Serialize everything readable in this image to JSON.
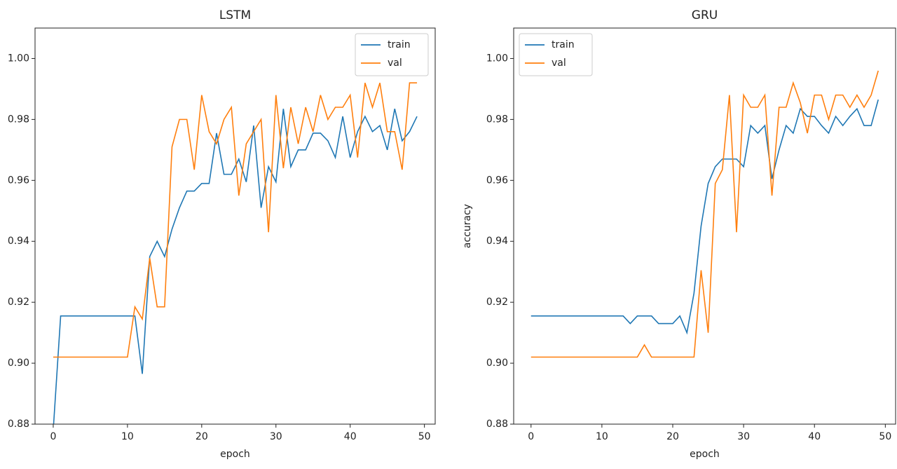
{
  "chart_data": [
    {
      "type": "line",
      "title": "LSTM",
      "xlabel": "epoch",
      "x": [
        0,
        1,
        2,
        3,
        4,
        5,
        6,
        7,
        8,
        9,
        10,
        11,
        12,
        13,
        14,
        15,
        16,
        17,
        18,
        19,
        20,
        21,
        22,
        23,
        24,
        25,
        26,
        27,
        28,
        29,
        30,
        31,
        32,
        33,
        34,
        35,
        36,
        37,
        38,
        39,
        40,
        41,
        42,
        43,
        44,
        45,
        46,
        47,
        48,
        49
      ],
      "series": [
        {
          "name": "train",
          "color": "#1f77b4",
          "values": [
            0.878,
            0.9155,
            0.9155,
            0.9155,
            0.9155,
            0.9155,
            0.9155,
            0.9155,
            0.9155,
            0.9155,
            0.9155,
            0.9155,
            0.8965,
            0.935,
            0.94,
            0.935,
            0.944,
            0.951,
            0.9565,
            0.9565,
            0.959,
            0.959,
            0.9755,
            0.962,
            0.962,
            0.967,
            0.9595,
            0.978,
            0.951,
            0.9645,
            0.9595,
            0.9835,
            0.9645,
            0.97,
            0.97,
            0.9755,
            0.9755,
            0.973,
            0.9675,
            0.981,
            0.9675,
            0.976,
            0.981,
            0.976,
            0.978,
            0.97,
            0.9835,
            0.973,
            0.976,
            0.981
          ]
        },
        {
          "name": "val",
          "color": "#ff7f0e",
          "values": [
            0.902,
            0.902,
            0.902,
            0.902,
            0.902,
            0.902,
            0.902,
            0.902,
            0.902,
            0.902,
            0.902,
            0.9185,
            0.9145,
            0.9345,
            0.9185,
            0.9185,
            0.971,
            0.98,
            0.98,
            0.9635,
            0.988,
            0.976,
            0.972,
            0.98,
            0.984,
            0.955,
            0.972,
            0.976,
            0.98,
            0.943,
            0.988,
            0.964,
            0.984,
            0.972,
            0.984,
            0.976,
            0.988,
            0.98,
            0.984,
            0.984,
            0.988,
            0.9675,
            0.992,
            0.984,
            0.992,
            0.976,
            0.976,
            0.9635,
            0.992,
            0.992
          ]
        }
      ],
      "xlim": [
        -2.45,
        51.45
      ],
      "xticks": [
        0,
        10,
        20,
        30,
        40,
        50
      ],
      "ylim": [
        0.88,
        1.01
      ],
      "yticks": [
        {
          "value": 0.88,
          "label": "0.88"
        },
        {
          "value": 0.9,
          "label": "0.90"
        },
        {
          "value": 0.92,
          "label": "0.92"
        },
        {
          "value": 0.94,
          "label": "0.94"
        },
        {
          "value": 0.96,
          "label": "0.96"
        },
        {
          "value": 0.98,
          "label": "0.98"
        },
        {
          "value": 1.0,
          "label": "1.00"
        }
      ],
      "legend": "upper right"
    },
    {
      "type": "line",
      "title": "GRU",
      "xlabel": "epoch",
      "ylabel": "accuracy",
      "x": [
        0,
        1,
        2,
        3,
        4,
        5,
        6,
        7,
        8,
        9,
        10,
        11,
        12,
        13,
        14,
        15,
        16,
        17,
        18,
        19,
        20,
        21,
        22,
        23,
        24,
        25,
        26,
        27,
        28,
        29,
        30,
        31,
        32,
        33,
        34,
        35,
        36,
        37,
        38,
        39,
        40,
        41,
        42,
        43,
        44,
        45,
        46,
        47,
        48,
        49
      ],
      "series": [
        {
          "name": "train",
          "color": "#1f77b4",
          "values": [
            0.9155,
            0.9155,
            0.9155,
            0.9155,
            0.9155,
            0.9155,
            0.9155,
            0.9155,
            0.9155,
            0.9155,
            0.9155,
            0.9155,
            0.9155,
            0.9155,
            0.913,
            0.9155,
            0.9155,
            0.9155,
            0.913,
            0.913,
            0.913,
            0.9155,
            0.91,
            0.923,
            0.945,
            0.959,
            0.9645,
            0.967,
            0.967,
            0.967,
            0.9645,
            0.978,
            0.9755,
            0.978,
            0.9605,
            0.97,
            0.978,
            0.9755,
            0.9835,
            0.981,
            0.981,
            0.978,
            0.9755,
            0.981,
            0.978,
            0.981,
            0.9835,
            0.978,
            0.978,
            0.9865
          ]
        },
        {
          "name": "val",
          "color": "#ff7f0e",
          "values": [
            0.902,
            0.902,
            0.902,
            0.902,
            0.902,
            0.902,
            0.902,
            0.902,
            0.902,
            0.902,
            0.902,
            0.902,
            0.902,
            0.902,
            0.902,
            0.902,
            0.906,
            0.902,
            0.902,
            0.902,
            0.902,
            0.902,
            0.902,
            0.902,
            0.9305,
            0.91,
            0.959,
            0.9635,
            0.988,
            0.943,
            0.988,
            0.984,
            0.984,
            0.988,
            0.955,
            0.984,
            0.984,
            0.992,
            0.9855,
            0.9755,
            0.988,
            0.988,
            0.98,
            0.988,
            0.988,
            0.984,
            0.988,
            0.984,
            0.988,
            0.996
          ]
        }
      ],
      "xlim": [
        -2.45,
        51.45
      ],
      "xticks": [
        0,
        10,
        20,
        30,
        40,
        50
      ],
      "ylim": [
        0.88,
        1.01
      ],
      "yticks": [
        {
          "value": 0.88,
          "label": "0.88"
        },
        {
          "value": 0.9,
          "label": "0.90"
        },
        {
          "value": 0.92,
          "label": "0.92"
        },
        {
          "value": 0.94,
          "label": "0.94"
        },
        {
          "value": 0.96,
          "label": "0.96"
        },
        {
          "value": 0.98,
          "label": "0.98"
        },
        {
          "value": 1.0,
          "label": "1.00"
        }
      ],
      "legend": "upper left"
    }
  ]
}
